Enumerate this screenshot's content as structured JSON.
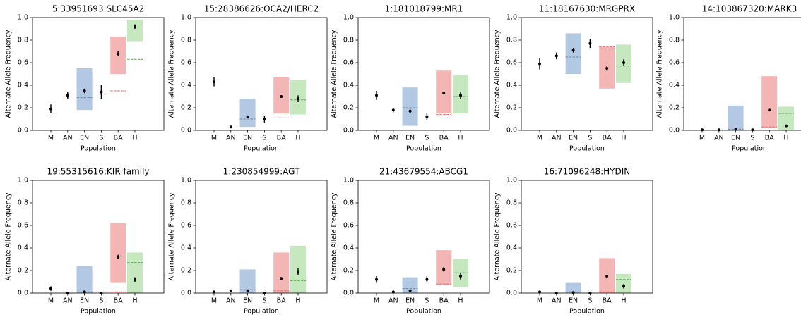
{
  "chart_data": [
    {
      "type": "dotrange",
      "title": "5:33951693:SLC45A2",
      "x_label": "Population",
      "y_label": "Alternate Allele Frequency",
      "categories": [
        "M",
        "AN",
        "EN",
        "S",
        "BA",
        "H"
      ],
      "values": [
        0.19,
        0.31,
        0.35,
        0.34,
        0.68,
        0.92
      ],
      "errors": [
        0.04,
        0.03,
        0.02,
        0.06,
        0.02,
        0.02
      ],
      "range_low": [
        null,
        null,
        0.18,
        null,
        0.5,
        0.79
      ],
      "range_high": [
        null,
        null,
        0.55,
        null,
        0.83,
        0.98
      ],
      "expected": [
        null,
        null,
        0.29,
        null,
        0.35,
        0.63
      ],
      "range_colors": [
        null,
        null,
        "#b3c8e2",
        null,
        "#f4b5b5",
        "#c6e8bf"
      ],
      "expected_colors": [
        null,
        null,
        "#6b87a8",
        null,
        "#e06a6a",
        "#5fa555"
      ],
      "ylim": [
        0,
        1
      ],
      "yticks": [
        {
          "value": 0,
          "label": "0.0"
        },
        0.2,
        0.4,
        0.6,
        0.8,
        {
          "value": 1,
          "label": "1.0"
        }
      ]
    },
    {
      "type": "dotrange",
      "title": "15:28386626:OCA2/HERC2",
      "x_label": "Population",
      "y_label": "Alternate Allele Frequency",
      "categories": [
        "M",
        "AN",
        "EN",
        "S",
        "BA",
        "H"
      ],
      "values": [
        0.43,
        0.03,
        0.12,
        0.1,
        0.3,
        0.28
      ],
      "errors": [
        0.04,
        0.01,
        0.01,
        0.03,
        0.01,
        0.03
      ],
      "range_low": [
        null,
        null,
        0.03,
        null,
        0.15,
        0.14
      ],
      "range_high": [
        null,
        null,
        0.28,
        null,
        0.47,
        0.45
      ],
      "expected": [
        null,
        null,
        0.1,
        null,
        0.11,
        0.27
      ],
      "range_colors": [
        null,
        null,
        "#b3c8e2",
        null,
        "#f4b5b5",
        "#c6e8bf"
      ],
      "expected_colors": [
        null,
        null,
        "#6b87a8",
        null,
        "#e06a6a",
        "#5fa555"
      ],
      "ylim": [
        0,
        1
      ],
      "yticks": [
        {
          "value": 0,
          "label": "0.0"
        },
        0.2,
        0.4,
        0.6,
        0.8,
        {
          "value": 1,
          "label": "1.0"
        }
      ]
    },
    {
      "type": "dotrange",
      "title": "1:181018799:MR1",
      "x_label": "Population",
      "y_label": "Alternate Allele Frequency",
      "categories": [
        "M",
        "AN",
        "EN",
        "S",
        "BA",
        "H"
      ],
      "values": [
        0.31,
        0.18,
        0.17,
        0.12,
        0.33,
        0.31
      ],
      "errors": [
        0.04,
        0.02,
        0.02,
        0.03,
        0.01,
        0.03
      ],
      "range_low": [
        null,
        null,
        0.04,
        null,
        0.15,
        0.15
      ],
      "range_high": [
        null,
        null,
        0.38,
        null,
        0.53,
        0.49
      ],
      "expected": [
        null,
        null,
        0.2,
        null,
        0.14,
        0.3
      ],
      "range_colors": [
        null,
        null,
        "#b3c8e2",
        null,
        "#f4b5b5",
        "#c6e8bf"
      ],
      "expected_colors": [
        null,
        null,
        "#6b87a8",
        null,
        "#e06a6a",
        "#5fa555"
      ],
      "ylim": [
        0,
        1
      ],
      "yticks": [
        {
          "value": 0,
          "label": "0.0"
        },
        0.2,
        0.4,
        0.6,
        0.8,
        {
          "value": 1,
          "label": "1.0"
        }
      ]
    },
    {
      "type": "dotrange",
      "title": "11:18167630:MRGPRX",
      "x_label": "Population",
      "y_label": "Alternate Allele Frequency",
      "categories": [
        "M",
        "AN",
        "EN",
        "S",
        "BA",
        "H"
      ],
      "values": [
        0.59,
        0.66,
        0.71,
        0.77,
        0.55,
        0.6
      ],
      "errors": [
        0.05,
        0.03,
        0.02,
        0.04,
        0.02,
        0.03
      ],
      "range_low": [
        null,
        null,
        0.5,
        null,
        0.37,
        0.42
      ],
      "range_high": [
        null,
        null,
        0.86,
        null,
        0.74,
        0.76
      ],
      "expected": [
        null,
        null,
        0.65,
        null,
        0.74,
        0.57
      ],
      "range_colors": [
        null,
        null,
        "#b3c8e2",
        null,
        "#f4b5b5",
        "#c6e8bf"
      ],
      "expected_colors": [
        null,
        null,
        "#6b87a8",
        null,
        "#e06a6a",
        "#5fa555"
      ],
      "ylim": [
        0,
        1
      ],
      "yticks": [
        {
          "value": 0,
          "label": "0.0"
        },
        0.2,
        0.4,
        0.6,
        0.8,
        {
          "value": 1,
          "label": "1.0"
        }
      ]
    },
    {
      "type": "dotrange",
      "title": "14:103867320:MARK3",
      "x_label": "Population",
      "y_label": "Alternate Allele Frequency",
      "categories": [
        "M",
        "AN",
        "EN",
        "S",
        "BA",
        "H"
      ],
      "values": [
        0.005,
        0.005,
        0.01,
        0.005,
        0.18,
        0.04
      ],
      "errors": [
        0.005,
        0.005,
        0.005,
        0.005,
        0.01,
        0.01
      ],
      "range_low": [
        null,
        null,
        0,
        null,
        0.02,
        0
      ],
      "range_high": [
        null,
        null,
        0.22,
        null,
        0.48,
        0.21
      ],
      "expected": [
        null,
        null,
        0.01,
        null,
        0.03,
        0.15
      ],
      "range_colors": [
        null,
        null,
        "#b3c8e2",
        null,
        "#f4b5b5",
        "#c6e8bf"
      ],
      "expected_colors": [
        null,
        null,
        "#6b87a8",
        null,
        "#e06a6a",
        "#5fa555"
      ],
      "ylim": [
        0,
        1
      ],
      "yticks": [
        {
          "value": 0,
          "label": "0.0"
        },
        0.2,
        0.4,
        0.6,
        0.8,
        {
          "value": 1,
          "label": "1.0"
        }
      ]
    },
    {
      "type": "dotrange",
      "title": "19:55315616:KIR family",
      "x_label": "Population",
      "y_label": "Alternate Allele Frequency",
      "categories": [
        "M",
        "AN",
        "EN",
        "S",
        "BA",
        "H"
      ],
      "values": [
        0.04,
        0.0,
        0.01,
        0.0,
        0.32,
        0.12
      ],
      "errors": [
        0.02,
        0.005,
        0.005,
        0.005,
        0.02,
        0.02
      ],
      "range_low": [
        null,
        null,
        0,
        null,
        0.09,
        0
      ],
      "range_high": [
        null,
        null,
        0.24,
        null,
        0.62,
        0.36
      ],
      "expected": [
        null,
        null,
        0.01,
        null,
        0.01,
        0.27
      ],
      "range_colors": [
        null,
        null,
        "#b3c8e2",
        null,
        "#f4b5b5",
        "#c6e8bf"
      ],
      "expected_colors": [
        null,
        null,
        "#6b87a8",
        null,
        "#e06a6a",
        "#5fa555"
      ],
      "ylim": [
        0,
        1
      ],
      "yticks": [
        {
          "value": 0,
          "label": "0.0"
        },
        0.2,
        0.4,
        0.6,
        0.8,
        {
          "value": 1,
          "label": "1.0"
        }
      ]
    },
    {
      "type": "dotrange",
      "title": "1:230854999:AGT",
      "x_label": "Population",
      "y_label": "Alternate Allele Frequency",
      "categories": [
        "M",
        "AN",
        "EN",
        "S",
        "BA",
        "H"
      ],
      "values": [
        0.01,
        0.02,
        0.02,
        0.0,
        0.13,
        0.19
      ],
      "errors": [
        0.01,
        0.01,
        0.005,
        0.005,
        0.01,
        0.03
      ],
      "range_low": [
        null,
        null,
        0,
        null,
        0,
        0
      ],
      "range_high": [
        null,
        null,
        0.21,
        null,
        0.36,
        0.42
      ],
      "expected": [
        null,
        null,
        0.03,
        null,
        0.02,
        0.11
      ],
      "range_colors": [
        null,
        null,
        "#b3c8e2",
        null,
        "#f4b5b5",
        "#c6e8bf"
      ],
      "expected_colors": [
        null,
        null,
        "#6b87a8",
        null,
        "#e06a6a",
        "#5fa555"
      ],
      "ylim": [
        0,
        1
      ],
      "yticks": [
        {
          "value": 0,
          "label": "0.0"
        },
        0.2,
        0.4,
        0.6,
        0.8,
        {
          "value": 1,
          "label": "1.0"
        }
      ]
    },
    {
      "type": "dotrange",
      "title": "21:43679554:ABCG1",
      "x_label": "Population",
      "y_label": "Alternate Allele Frequency",
      "categories": [
        "M",
        "AN",
        "EN",
        "S",
        "BA",
        "H"
      ],
      "values": [
        0.12,
        0.01,
        0.02,
        0.12,
        0.21,
        0.15
      ],
      "errors": [
        0.03,
        0.01,
        0.005,
        0.03,
        0.02,
        0.03
      ],
      "range_low": [
        null,
        null,
        0,
        null,
        0.07,
        0.05
      ],
      "range_high": [
        null,
        null,
        0.14,
        null,
        0.38,
        0.3
      ],
      "expected": [
        null,
        null,
        0.04,
        null,
        0.08,
        0.18
      ],
      "range_colors": [
        null,
        null,
        "#b3c8e2",
        null,
        "#f4b5b5",
        "#c6e8bf"
      ],
      "expected_colors": [
        null,
        null,
        "#6b87a8",
        null,
        "#e06a6a",
        "#5fa555"
      ],
      "ylim": [
        0,
        1
      ],
      "yticks": [
        {
          "value": 0,
          "label": "0.0"
        },
        0.2,
        0.4,
        0.6,
        0.8,
        {
          "value": 1,
          "label": "1.0"
        }
      ]
    },
    {
      "type": "dotrange",
      "title": "16:71096248:HYDIN",
      "x_label": "Population",
      "y_label": "Alternate Allele Frequency",
      "categories": [
        "M",
        "AN",
        "EN",
        "S",
        "BA",
        "H"
      ],
      "values": [
        0.01,
        0.0,
        0.005,
        0.0,
        0.15,
        0.06
      ],
      "errors": [
        0.01,
        0.005,
        0.005,
        0.005,
        0.01,
        0.02
      ],
      "range_low": [
        null,
        null,
        0,
        null,
        0,
        0
      ],
      "range_high": [
        null,
        null,
        0.09,
        null,
        0.31,
        0.17
      ],
      "expected": [
        null,
        null,
        0.01,
        null,
        0.01,
        0.12
      ],
      "range_colors": [
        null,
        null,
        "#b3c8e2",
        null,
        "#f4b5b5",
        "#c6e8bf"
      ],
      "expected_colors": [
        null,
        null,
        "#6b87a8",
        null,
        "#e06a6a",
        "#5fa555"
      ],
      "ylim": [
        0,
        1
      ],
      "yticks": [
        {
          "value": 0,
          "label": "0.0"
        },
        0.2,
        0.4,
        0.6,
        0.8,
        {
          "value": 1,
          "label": "1.0"
        }
      ]
    }
  ]
}
